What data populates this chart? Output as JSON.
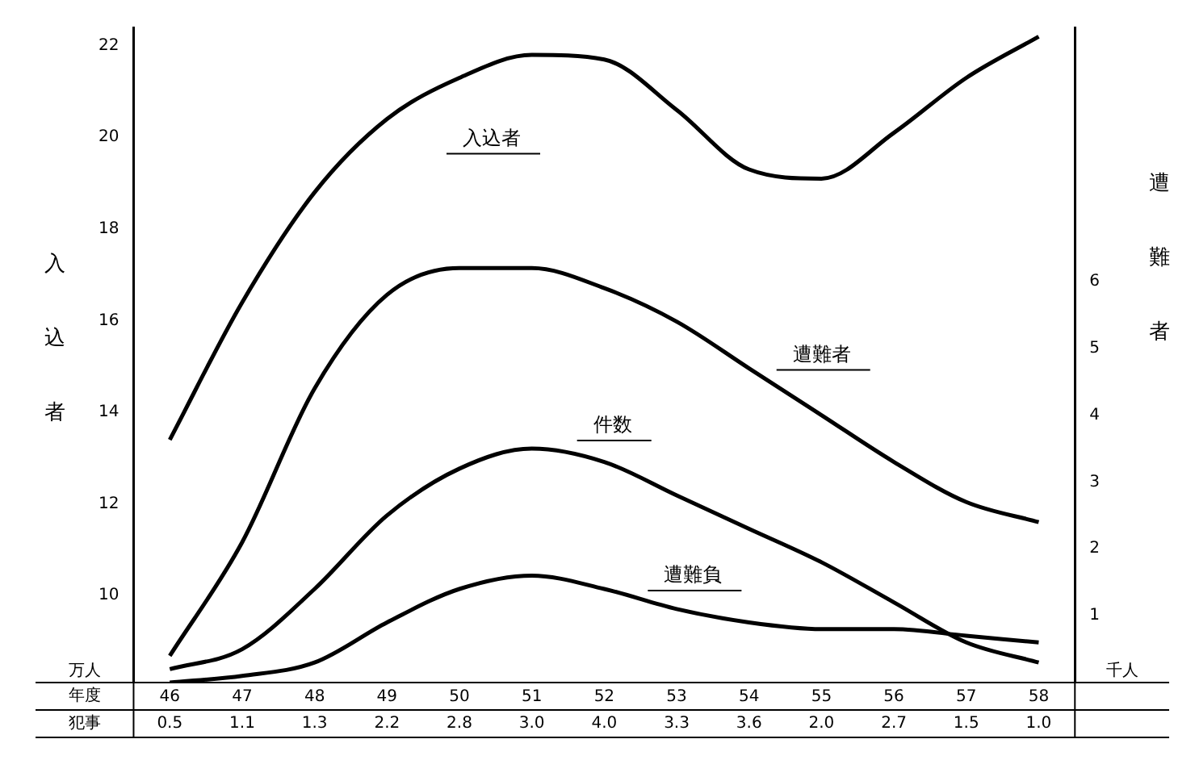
{
  "chart_data": {
    "type": "line",
    "ylabel": "入込者",
    "y2label": "遭難者",
    "xlabel": "年度",
    "categories": [
      "46",
      "47",
      "48",
      "49",
      "50",
      "51",
      "52",
      "53",
      "54",
      "55",
      "56",
      "57",
      "58"
    ],
    "series": [
      {
        "name": "入込者",
        "color": "#000000",
        "values": [
          13.4,
          16.4,
          18.8,
          20.4,
          21.3,
          21.8,
          21.7,
          20.6,
          19.3,
          19.1,
          20.1,
          21.3,
          22.2
        ]
      },
      {
        "name": "遭難者",
        "color": "#000000",
        "axis": "y2",
        "values": [
          0.4,
          2.1,
          4.4,
          5.8,
          6.2,
          6.2,
          5.9,
          5.4,
          4.7,
          4.0,
          3.3,
          2.7,
          2.4
        ]
      },
      {
        "name": "件数",
        "color": "#000000",
        "axis": "y2",
        "values": [
          0.2,
          0.5,
          1.4,
          2.5,
          3.2,
          3.5,
          3.3,
          2.8,
          2.3,
          1.8,
          1.2,
          0.6,
          0.3
        ]
      },
      {
        "name": "遭難負",
        "color": "#000000",
        "axis": "y2",
        "values": [
          0.0,
          0.1,
          0.3,
          0.9,
          1.4,
          1.6,
          1.4,
          1.1,
          0.9,
          0.8,
          0.8,
          0.7,
          0.6
        ]
      }
    ],
    "ylim": [
      8.1,
      22.4
    ],
    "yticks": [
      10,
      12,
      14,
      16,
      18,
      20,
      22
    ],
    "y2lim": [
      0,
      9.8
    ],
    "y2ticks": [
      1,
      2,
      3,
      4,
      5,
      6
    ],
    "annotations": [
      "万人",
      "千人",
      "犯事",
      "0.5",
      "1.1",
      "1.3",
      "2.2",
      "2.8",
      "3.0",
      "4.0",
      "3.3",
      "3.6",
      "2.0",
      "2.7",
      "1.5",
      "1.0"
    ],
    "grid": false,
    "legend": false,
    "marker": "none",
    "line_style": "solid"
  }
}
